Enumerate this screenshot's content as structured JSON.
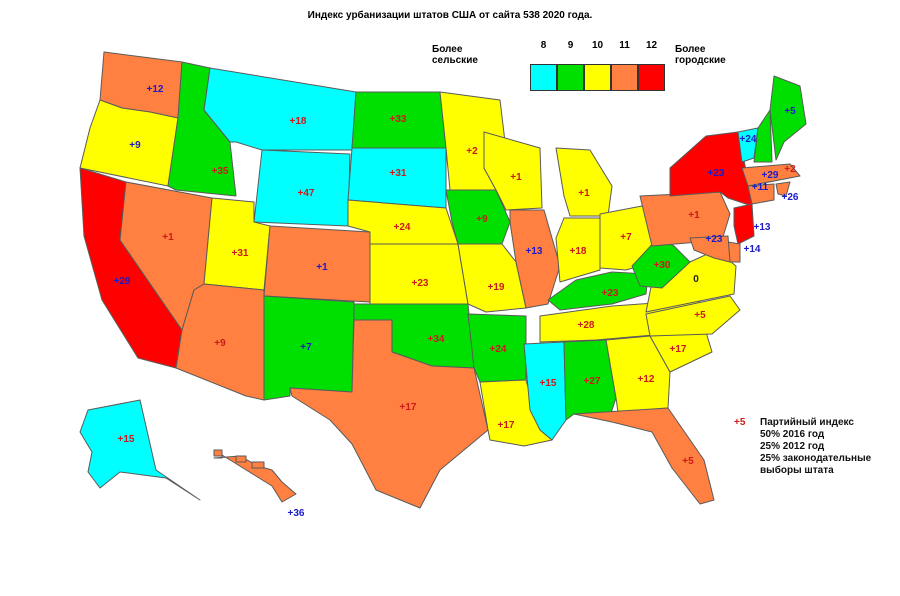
{
  "title": "Индекс урбанизации штатов США от сайта 538 2020 года.",
  "legend": {
    "rural_label": "Более сельские",
    "urban_label": "Более городские",
    "scale": [
      {
        "value": "8",
        "color": "#00ffff"
      },
      {
        "value": "9",
        "color": "#00e000"
      },
      {
        "value": "10",
        "color": "#ffff00"
      },
      {
        "value": "11",
        "color": "#ff8040"
      },
      {
        "value": "12",
        "color": "#ff0000"
      }
    ]
  },
  "note": {
    "sample": "+5",
    "lines": [
      "Партийный индекс",
      "50% 2016 год",
      "25% 2012 год",
      "25% законодательные",
      "выборы штата"
    ]
  },
  "states": [
    {
      "code": "WA",
      "label": "+12",
      "party": "d",
      "level": 11
    },
    {
      "code": "OR",
      "label": "+9",
      "party": "d",
      "level": 10
    },
    {
      "code": "CA",
      "label": "+29",
      "party": "d",
      "level": 12
    },
    {
      "code": "ID",
      "label": "+35",
      "party": "r",
      "level": 9
    },
    {
      "code": "NV",
      "label": "+1",
      "party": "r",
      "level": 11
    },
    {
      "code": "MT",
      "label": "+18",
      "party": "r",
      "level": 8
    },
    {
      "code": "WY",
      "label": "+47",
      "party": "r",
      "level": 8
    },
    {
      "code": "UT",
      "label": "+31",
      "party": "r",
      "level": 10
    },
    {
      "code": "AZ",
      "label": "+9",
      "party": "r",
      "level": 11
    },
    {
      "code": "CO",
      "label": "+1",
      "party": "d",
      "level": 11
    },
    {
      "code": "NM",
      "label": "+7",
      "party": "d",
      "level": 9
    },
    {
      "code": "ND",
      "label": "+33",
      "party": "r",
      "level": 9
    },
    {
      "code": "SD",
      "label": "+31",
      "party": "r",
      "level": 8
    },
    {
      "code": "NE",
      "label": "+24",
      "party": "r",
      "level": 10
    },
    {
      "code": "KS",
      "label": "+23",
      "party": "r",
      "level": 10
    },
    {
      "code": "OK",
      "label": "+34",
      "party": "r",
      "level": 9
    },
    {
      "code": "TX",
      "label": "+17",
      "party": "r",
      "level": 11
    },
    {
      "code": "MN",
      "label": "+2",
      "party": "r",
      "level": 10
    },
    {
      "code": "IA",
      "label": "+9",
      "party": "r",
      "level": 9
    },
    {
      "code": "MO",
      "label": "+19",
      "party": "r",
      "level": 10
    },
    {
      "code": "AR",
      "label": "+24",
      "party": "r",
      "level": 9
    },
    {
      "code": "LA",
      "label": "+17",
      "party": "r",
      "level": 10
    },
    {
      "code": "WI",
      "label": "+1",
      "party": "r",
      "level": 10
    },
    {
      "code": "IL",
      "label": "+13",
      "party": "d",
      "level": 11
    },
    {
      "code": "MI",
      "label": "+1",
      "party": "r",
      "level": 10
    },
    {
      "code": "IN",
      "label": "+18",
      "party": "r",
      "level": 10
    },
    {
      "code": "OH",
      "label": "+7",
      "party": "r",
      "level": 10
    },
    {
      "code": "KY",
      "label": "+23",
      "party": "r",
      "level": 9
    },
    {
      "code": "TN",
      "label": "+28",
      "party": "r",
      "level": 10
    },
    {
      "code": "MS",
      "label": "+15",
      "party": "r",
      "level": 8
    },
    {
      "code": "AL",
      "label": "+27",
      "party": "r",
      "level": 9
    },
    {
      "code": "GA",
      "label": "+12",
      "party": "r",
      "level": 10
    },
    {
      "code": "FL",
      "label": "+5",
      "party": "r",
      "level": 11
    },
    {
      "code": "SC",
      "label": "+17",
      "party": "r",
      "level": 10
    },
    {
      "code": "NC",
      "label": "+5",
      "party": "r",
      "level": 10
    },
    {
      "code": "VA",
      "label": "0",
      "party": "even",
      "level": 10
    },
    {
      "code": "WV",
      "label": "+30",
      "party": "r",
      "level": 9
    },
    {
      "code": "PA",
      "label": "+1",
      "party": "r",
      "level": 11
    },
    {
      "code": "NY",
      "label": "+23",
      "party": "d",
      "level": 12
    },
    {
      "code": "VT",
      "label": "+24",
      "party": "d",
      "level": 8
    },
    {
      "code": "NH",
      "label": "+2",
      "party": "r",
      "level": 9
    },
    {
      "code": "ME",
      "label": "+5",
      "party": "d",
      "level": 9
    },
    {
      "code": "MA",
      "label": "+29",
      "party": "d",
      "level": 11
    },
    {
      "code": "RI",
      "label": "+26",
      "party": "d",
      "level": 11
    },
    {
      "code": "CT",
      "label": "+11",
      "party": "d",
      "level": 11
    },
    {
      "code": "NJ",
      "label": "+13",
      "party": "d",
      "level": 12
    },
    {
      "code": "DE",
      "label": "+14",
      "party": "d",
      "level": 11
    },
    {
      "code": "MD",
      "label": "+23",
      "party": "d",
      "level": 11
    },
    {
      "code": "AK",
      "label": "+15",
      "party": "r",
      "level": 8
    },
    {
      "code": "HI",
      "label": "+36",
      "party": "d",
      "level": 11
    }
  ]
}
